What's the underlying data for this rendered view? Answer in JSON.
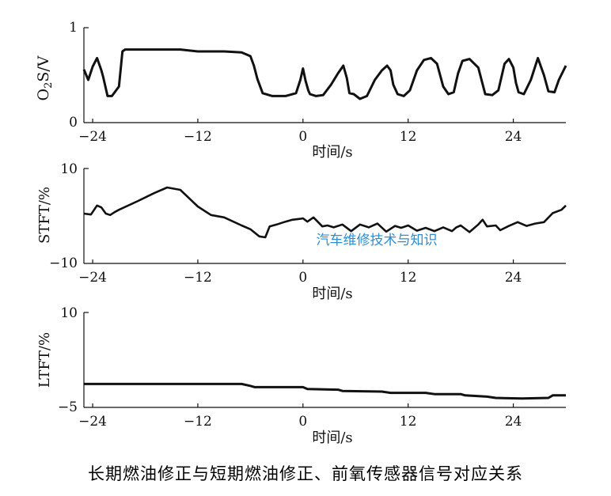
{
  "caption": "长期燃油修正与短期燃油修正、前氧传感器信号对应关系",
  "watermark": "汽车维修技术与知识",
  "colors": {
    "line": "#111111",
    "axis": "#111111",
    "watermark": "#2a8fd8"
  },
  "chart_data": [
    {
      "type": "line",
      "ylabel": "O2S/V",
      "xlabel": "时间/s",
      "xlim": [
        -25,
        30
      ],
      "ylim": [
        0,
        1
      ],
      "yticks": [
        "0",
        "1"
      ],
      "xticks": [
        "-24",
        "-12",
        "0",
        "12",
        "24"
      ],
      "series": [
        {
          "x": [
            -25,
            -24.5,
            -24,
            -23.5,
            -23,
            -22.8,
            -22.3,
            -21.8,
            -21,
            -20.6,
            -20.3,
            -20,
            -17,
            -14,
            -12,
            -9,
            -7,
            -6,
            -5.6,
            -5.2,
            -4.6,
            -3.5,
            -2,
            -0.8,
            -0.3,
            0,
            0.3,
            0.6,
            0.8,
            1.5,
            2.3,
            3.2,
            4,
            4.6,
            5,
            5.3,
            5.8,
            6.5,
            7.3,
            8.2,
            9,
            9.6,
            10,
            10.3,
            10.8,
            11.5,
            12.2,
            13,
            13.8,
            14.6,
            15.3,
            16,
            16.6,
            17.2,
            17.7,
            18.2,
            19,
            20,
            20.8,
            21.6,
            22.3,
            23,
            23.5,
            24,
            24.3,
            24.6,
            25.2,
            26,
            26.8,
            27.5,
            28,
            28.7,
            29.2,
            30
          ],
          "y": [
            0.56,
            0.45,
            0.59,
            0.68,
            0.55,
            0.48,
            0.28,
            0.28,
            0.38,
            0.75,
            0.77,
            0.77,
            0.77,
            0.77,
            0.75,
            0.75,
            0.74,
            0.7,
            0.6,
            0.46,
            0.31,
            0.28,
            0.28,
            0.31,
            0.45,
            0.57,
            0.44,
            0.34,
            0.3,
            0.28,
            0.29,
            0.4,
            0.52,
            0.6,
            0.47,
            0.31,
            0.3,
            0.25,
            0.28,
            0.45,
            0.55,
            0.6,
            0.55,
            0.4,
            0.3,
            0.28,
            0.34,
            0.55,
            0.66,
            0.68,
            0.62,
            0.38,
            0.3,
            0.32,
            0.52,
            0.65,
            0.67,
            0.58,
            0.3,
            0.29,
            0.34,
            0.62,
            0.67,
            0.58,
            0.42,
            0.32,
            0.3,
            0.45,
            0.68,
            0.5,
            0.33,
            0.32,
            0.45,
            0.6
          ]
        }
      ]
    },
    {
      "type": "line",
      "ylabel": "STFT/%",
      "xlabel": "时间/s",
      "xlim": [
        -25,
        30
      ],
      "ylim": [
        -10,
        10
      ],
      "yticks": [
        "−10",
        "10"
      ],
      "xticks": [
        "-24",
        "-12",
        "0",
        "12",
        "24"
      ],
      "series": [
        {
          "x": [
            -25,
            -24.2,
            -23.5,
            -23,
            -22.5,
            -22,
            -21.5,
            -21,
            -19,
            -17,
            -15.5,
            -14,
            -12,
            -10.5,
            -9,
            -7,
            -6,
            -5,
            -4.3,
            -3.8,
            -3,
            -2,
            -1.2,
            -0.3,
            0,
            0.5,
            1.2,
            2.2,
            2.8,
            3.5,
            4.5,
            5.5,
            6.5,
            7.5,
            8.5,
            9.5,
            10.5,
            11.2,
            12,
            13,
            14,
            15,
            16,
            17,
            17.5,
            18,
            19,
            20,
            20.5,
            21,
            22,
            22.5,
            23.5,
            24.5,
            25.5,
            26.5,
            27.5,
            28.5,
            29.5,
            30
          ],
          "y": [
            0.5,
            0.3,
            2.2,
            1.8,
            0.5,
            0.2,
            0.8,
            1.3,
            3,
            4.8,
            6,
            5.5,
            2,
            0.2,
            -0.3,
            -2,
            -2.8,
            -4.3,
            -4.5,
            -2.2,
            -1.8,
            -1.2,
            -0.8,
            -0.6,
            -0.5,
            -1.2,
            -0.3,
            -2.2,
            -2,
            -2.4,
            -1.8,
            -3.2,
            -1.8,
            -2.4,
            -1.6,
            -3.3,
            -2.1,
            -2.5,
            -2,
            -3.1,
            -2.5,
            -3.2,
            -2.4,
            -3.2,
            -2.4,
            -2,
            -3.4,
            -1.8,
            -0.8,
            -2.2,
            -2,
            -3,
            -2.1,
            -1.3,
            -2.1,
            -1.6,
            -1.3,
            0.6,
            1.3,
            2.2
          ]
        }
      ]
    },
    {
      "type": "line",
      "ylabel": "LTFT/%",
      "xlabel": "时间/s",
      "xlim": [
        -25,
        30
      ],
      "ylim": [
        -5,
        10
      ],
      "yticks": [
        "−5",
        "10"
      ],
      "xticks": [
        "-24",
        "-12",
        "0",
        "12",
        "24"
      ],
      "series": [
        {
          "x": [
            -25,
            -7,
            -6,
            -5.5,
            0,
            0.5,
            4,
            4.5,
            9,
            10,
            14,
            15,
            18,
            18.5,
            21,
            22,
            25,
            28,
            28.5,
            30
          ],
          "y": [
            -1.3,
            -1.3,
            -1.6,
            -1.8,
            -1.8,
            -2.1,
            -2.2,
            -2.4,
            -2.5,
            -2.7,
            -2.7,
            -2.9,
            -2.9,
            -3.1,
            -3.3,
            -3.5,
            -3.6,
            -3.5,
            -3.1,
            -3.1
          ]
        }
      ]
    }
  ]
}
